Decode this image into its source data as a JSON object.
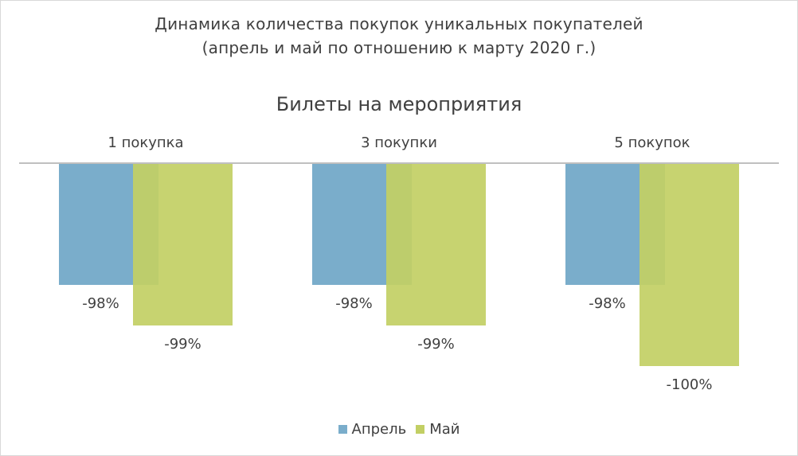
{
  "title_line1": "Динамика количества покупок уникальных покупателей",
  "title_line2": "(апрель и май по отношению к марту 2020 г.)",
  "chart_data": {
    "type": "bar",
    "subtitle": "Билеты на мероприятия",
    "categories": [
      "1 покупка",
      "3 покупки",
      "5 покупок"
    ],
    "series": [
      {
        "name": "Апрель",
        "color": "#7aadcb",
        "values": [
          -0.98,
          -0.98,
          -0.98
        ],
        "labels": [
          "-98%",
          "-98%",
          "-98%"
        ]
      },
      {
        "name": "Май",
        "color": "#c2cf64",
        "values": [
          -0.99,
          -0.99,
          -1.0
        ],
        "labels": [
          "-99%",
          "-99%",
          "-100%"
        ]
      }
    ],
    "grid": false,
    "legend_position": "bottom",
    "bar_overlap": true
  }
}
